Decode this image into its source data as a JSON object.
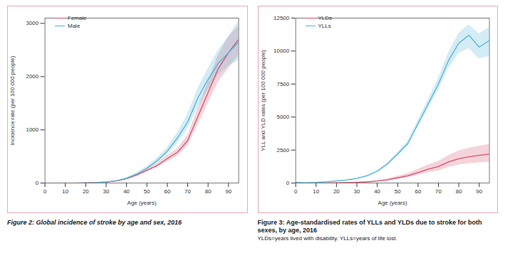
{
  "chart_data": [
    {
      "type": "line",
      "title": "Figure 2: Global incidence of stroke by age and sex, 2016",
      "x_label": "Age (years)",
      "y_label": "Incidence rate (per 100 000 people)",
      "x": [
        0,
        5,
        10,
        15,
        20,
        25,
        30,
        35,
        40,
        45,
        50,
        55,
        60,
        65,
        70,
        75,
        80,
        85,
        90,
        95
      ],
      "series": [
        {
          "name": "Female",
          "color": "#d9506a",
          "values": [
            0,
            0,
            0,
            2,
            5,
            10,
            20,
            40,
            80,
            150,
            240,
            330,
            460,
            580,
            800,
            1250,
            1700,
            2150,
            2450,
            2700
          ],
          "lower": [
            0,
            0,
            0,
            1,
            4,
            8,
            16,
            34,
            70,
            132,
            212,
            292,
            405,
            510,
            700,
            1100,
            1500,
            1900,
            2150,
            2400
          ],
          "upper": [
            0,
            0,
            0,
            3,
            6,
            12,
            24,
            46,
            90,
            168,
            268,
            368,
            515,
            650,
            900,
            1400,
            1900,
            2400,
            2750,
            2950
          ]
        },
        {
          "name": "Male",
          "color": "#4fb3d9",
          "values": [
            0,
            0,
            0,
            2,
            5,
            10,
            20,
            40,
            90,
            170,
            280,
            420,
            600,
            850,
            1150,
            1600,
            1950,
            2250,
            2450,
            2650
          ],
          "lower": [
            0,
            0,
            0,
            1,
            4,
            8,
            16,
            34,
            78,
            150,
            245,
            370,
            530,
            750,
            1020,
            1420,
            1750,
            2020,
            2200,
            2300
          ],
          "upper": [
            0,
            0,
            0,
            3,
            6,
            12,
            24,
            46,
            102,
            190,
            315,
            470,
            670,
            950,
            1290,
            1780,
            2150,
            2500,
            2750,
            3050
          ]
        }
      ],
      "xlim": [
        0,
        95
      ],
      "ylim": [
        0,
        3100
      ],
      "xticks": [
        0,
        10,
        20,
        30,
        40,
        50,
        60,
        70,
        80,
        90
      ],
      "yticks": [
        0,
        1000,
        2000,
        3000
      ],
      "legend": "top-left",
      "grid": false
    },
    {
      "type": "line",
      "title": "Figure 3: Age-standardised rates of YLLs and YLDs due to stroke for both sexes, by age, 2016",
      "subtitle": "YLDs=years lived with disability. YLLs=years of life lost.",
      "x_label": "Age (years)",
      "y_label": "YLL and YLD rates (per 100 000 people)",
      "x": [
        0,
        5,
        10,
        15,
        20,
        25,
        30,
        35,
        40,
        45,
        50,
        55,
        60,
        65,
        70,
        75,
        80,
        85,
        90,
        95
      ],
      "series": [
        {
          "name": "YLDs",
          "color": "#d9506a",
          "values": [
            5,
            5,
            10,
            15,
            25,
            40,
            60,
            90,
            150,
            250,
            400,
            550,
            800,
            1050,
            1250,
            1600,
            1850,
            2000,
            2100,
            2200
          ],
          "lower": [
            3,
            3,
            6,
            10,
            17,
            28,
            42,
            65,
            110,
            185,
            300,
            410,
            600,
            790,
            930,
            1200,
            1380,
            1480,
            1540,
            1600
          ],
          "upper": [
            8,
            8,
            14,
            21,
            35,
            55,
            82,
            120,
            200,
            330,
            530,
            720,
            1050,
            1370,
            1640,
            2100,
            2450,
            2650,
            2800,
            2950
          ]
        },
        {
          "name": "YLLs",
          "color": "#4fb3d9",
          "values": [
            50,
            30,
            50,
            100,
            160,
            230,
            350,
            550,
            900,
            1450,
            2200,
            3000,
            4500,
            6000,
            7500,
            9300,
            10600,
            11200,
            10300,
            10800
          ],
          "lower": [
            40,
            24,
            42,
            88,
            142,
            205,
            315,
            500,
            830,
            1350,
            2060,
            2820,
            4240,
            5650,
            7050,
            8700,
            9850,
            10200,
            9400,
            9600
          ],
          "upper": [
            60,
            36,
            58,
            112,
            178,
            255,
            385,
            600,
            970,
            1550,
            2340,
            3180,
            4760,
            6350,
            7950,
            9900,
            11350,
            12000,
            11300,
            11800
          ]
        }
      ],
      "xlim": [
        0,
        95
      ],
      "ylim": [
        0,
        12500
      ],
      "xticks": [
        0,
        10,
        20,
        30,
        40,
        50,
        60,
        70,
        80,
        90
      ],
      "yticks": [
        0,
        2500,
        5000,
        7500,
        10000,
        12500
      ],
      "legend": "top-left",
      "grid": false
    }
  ]
}
